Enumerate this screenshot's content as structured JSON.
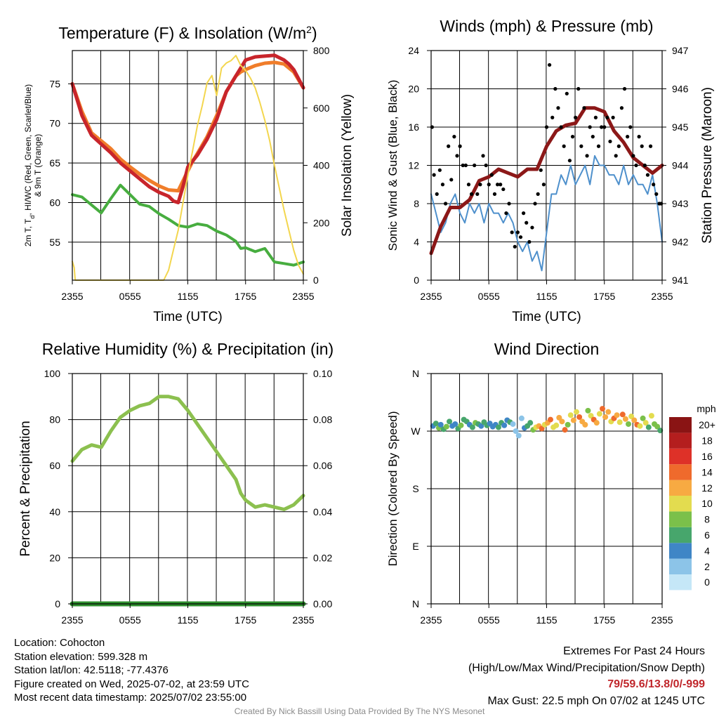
{
  "chart_data": [
    {
      "id": "temp",
      "type": "line",
      "title": "Temperature (F) & Insolation (W/m",
      "title_sup": "2",
      "title_close": ")",
      "xlabel": "Time (UTC)",
      "ylabel_left": [
        "2m T, T",
        "d",
        ", HI/WC (Red, Green, Scarlet/Blue)",
        "& 9m T (Orange)"
      ],
      "ylabel_right": "Solar Insolation (Yellow)",
      "x_ticks": [
        "2355",
        "0555",
        "1155",
        "1755",
        "2355"
      ],
      "ylim": [
        50.2,
        79.2
      ],
      "y_ticks": [
        55,
        60,
        65,
        70,
        75
      ],
      "y2lim": [
        0,
        920
      ],
      "y2_ticks": [
        0,
        200,
        400,
        600,
        800
      ],
      "grid": true,
      "series": [
        {
          "color": "#f07d2a",
          "width": 5,
          "x": [
            0,
            1,
            2,
            3,
            4,
            5,
            6,
            7,
            8,
            9,
            10,
            11,
            12,
            12.5,
            13,
            14,
            15,
            16,
            17,
            17.5,
            18,
            19,
            20,
            21,
            22,
            23,
            24
          ],
          "y": [
            75,
            71.5,
            68.8,
            67.8,
            66.8,
            65.5,
            64.5,
            63.6,
            62.8,
            62.1,
            61.6,
            61.5,
            64,
            65.2,
            66.2,
            68.3,
            71,
            74,
            76,
            76.5,
            76.8,
            77.3,
            77.6,
            77.7,
            77.5,
            76.5,
            74.5
          ]
        },
        {
          "color": "#c8252b",
          "width": 5,
          "x": [
            0,
            1,
            2,
            3,
            4,
            5,
            6,
            7,
            8,
            9,
            10,
            10.5,
            11,
            11.5,
            12,
            13,
            14,
            15,
            16,
            17,
            18,
            19,
            20,
            21,
            22,
            22.5,
            23,
            24
          ],
          "y": [
            75,
            71,
            68.5,
            67.4,
            66.3,
            65,
            64,
            63,
            62,
            61.3,
            60.8,
            60.2,
            60,
            62,
            64.5,
            66,
            68,
            70.5,
            74,
            76,
            78,
            78.4,
            78.5,
            78.6,
            78,
            77.5,
            76.8,
            74.5
          ]
        },
        {
          "color": "#47ad3f",
          "width": 4,
          "x": [
            0,
            1,
            2,
            3,
            4,
            5,
            6,
            7,
            8,
            9,
            10,
            11,
            12,
            13,
            14,
            15,
            16,
            17,
            17.5,
            18,
            19,
            20,
            21,
            22,
            23,
            24
          ],
          "y": [
            61,
            60.7,
            59.7,
            58.7,
            60.5,
            62.2,
            61,
            59.8,
            59.5,
            58.6,
            57.9,
            57.1,
            56.9,
            57.3,
            57.1,
            56.4,
            55.9,
            55.1,
            54.2,
            54.3,
            53.8,
            54.2,
            52.5,
            52.3,
            52.1,
            52.5
          ]
        },
        {
          "color": "#f3d64e",
          "width": 2,
          "axis": "right",
          "x": [
            0,
            0.2,
            0.3,
            9.5,
            10,
            10.5,
            11,
            11.5,
            12,
            12.5,
            13,
            13.5,
            14,
            14.5,
            15,
            15.5,
            16,
            16.5,
            17,
            17.5,
            18,
            18.5,
            19,
            19.5,
            20,
            20.5,
            21,
            21.5,
            22,
            22.5,
            23,
            23.5,
            24
          ],
          "y": [
            75,
            50,
            0,
            0,
            40,
            120,
            200,
            310,
            420,
            520,
            620,
            700,
            790,
            820,
            740,
            850,
            870,
            880,
            900,
            860,
            840,
            810,
            770,
            710,
            640,
            560,
            460,
            370,
            280,
            200,
            120,
            60,
            25
          ]
        }
      ]
    },
    {
      "id": "winds",
      "type": "line",
      "title": "Winds (mph) & Pressure (mb)",
      "xlabel": "Time (UTC)",
      "ylabel_left": "Sonic Wind & Gust (Blue, Black)",
      "ylabel_right": "Station Pressure (Maroon)",
      "x_ticks": [
        "2355",
        "0555",
        "1155",
        "1755",
        "2355"
      ],
      "ylim": [
        0,
        24
      ],
      "y_ticks": [
        0,
        4,
        8,
        12,
        16,
        20,
        24
      ],
      "y2lim": [
        941,
        947
      ],
      "y2_ticks": [
        941,
        942,
        943,
        944,
        945,
        946,
        947
      ],
      "grid": true,
      "series": [
        {
          "name": "",
          "color": "#4e90cc",
          "width": 2,
          "x": [
            0,
            0.5,
            1,
            1.5,
            2,
            2.5,
            3,
            3.5,
            4,
            4.5,
            5,
            5.5,
            6,
            6.5,
            7,
            7.5,
            8,
            8.5,
            9,
            9.5,
            10,
            10.5,
            11,
            11.5,
            12,
            12.5,
            13,
            13.5,
            14,
            14.5,
            15,
            15.5,
            16,
            16.5,
            17,
            17.5,
            18,
            18.5,
            19,
            19.5,
            20,
            20.5,
            21,
            21.5,
            22,
            22.5,
            23,
            23.5,
            24
          ],
          "y": [
            9,
            7,
            5,
            6,
            8,
            9,
            7,
            6,
            8,
            7,
            8,
            6,
            8,
            7,
            7,
            6,
            7,
            6,
            4,
            3,
            4,
            2,
            3,
            1,
            5,
            9,
            9,
            11,
            10,
            12,
            10,
            11,
            12,
            10,
            13,
            12,
            12,
            11,
            11,
            10,
            12,
            10,
            11,
            10,
            10,
            9,
            11,
            8,
            4
          ]
        },
        {
          "name": "",
          "color": "#8c1818",
          "width": 5,
          "axis": "right",
          "x": [
            0,
            1,
            2,
            3,
            4,
            5,
            6,
            7,
            8,
            9,
            10,
            11,
            12,
            13,
            14,
            15,
            16,
            17,
            18,
            19,
            20,
            21,
            22,
            23,
            24
          ],
          "y": [
            941.7,
            942.4,
            942.9,
            942.9,
            943.1,
            943.6,
            943.7,
            943.9,
            943.8,
            943.7,
            943.9,
            943.9,
            944.5,
            944.9,
            945.05,
            945.1,
            945.5,
            945.5,
            945.4,
            944.9,
            944.6,
            944.2,
            944.0,
            943.8,
            944.0
          ]
        }
      ],
      "gust_points": {
        "x": [
          0.1,
          0.3,
          0.6,
          0.9,
          1.2,
          1.5,
          1.8,
          2.1,
          2.4,
          2.7,
          3,
          3.3,
          3.6,
          3.9,
          4.2,
          4.5,
          4.8,
          5.1,
          5.4,
          5.7,
          6,
          6.3,
          6.6,
          6.9,
          7.2,
          7.5,
          7.8,
          8.1,
          8.4,
          8.7,
          9,
          9.3,
          9.6,
          9.9,
          10.2,
          10.5,
          10.8,
          11.1,
          11.4,
          11.7,
          12,
          12.3,
          12.6,
          12.9,
          13.2,
          13.5,
          13.8,
          14.1,
          14.4,
          14.7,
          15,
          15.3,
          15.6,
          15.9,
          16.2,
          16.5,
          16.8,
          17.1,
          17.4,
          17.7,
          18,
          18.3,
          18.6,
          18.9,
          19.2,
          19.5,
          19.8,
          20.1,
          20.4,
          20.7,
          21,
          21.3,
          21.6,
          21.9,
          22.2,
          22.5,
          22.8,
          23.1,
          23.4,
          23.7,
          23.9
        ],
        "y": [
          16,
          11,
          9,
          11.5,
          10,
          8,
          14,
          10.5,
          15,
          13,
          14,
          12,
          12,
          10,
          9,
          12,
          9,
          10,
          13,
          12,
          10,
          11,
          9,
          10,
          10,
          9.5,
          7,
          8,
          5,
          3.5,
          5,
          4.5,
          7,
          6,
          4,
          5.5,
          8,
          9,
          11.5,
          10,
          16,
          22.5,
          17,
          20,
          18,
          16,
          14,
          19.5,
          12.5,
          15,
          17,
          20,
          14,
          18,
          13,
          16,
          15,
          17,
          14,
          16,
          16,
          17,
          14.5,
          17,
          13,
          14,
          18,
          20,
          15,
          16,
          13,
          12,
          15,
          14,
          12,
          11,
          14,
          10,
          9,
          8,
          8
        ]
      }
    },
    {
      "id": "rh",
      "type": "line",
      "title": "Relative Humidity (%) & Precipitation (in)",
      "ylabel_left": "Percent & Precipitation",
      "x_ticks": [
        "2355",
        "0555",
        "1155",
        "1755",
        "2355"
      ],
      "ylim": [
        0,
        100
      ],
      "y_ticks": [
        0,
        20,
        40,
        60,
        80,
        100
      ],
      "y2lim": [
        0,
        0.1
      ],
      "y2_ticks": [
        "0.00",
        "0.02",
        "0.04",
        "0.06",
        "0.08",
        "0.10"
      ],
      "grid": true,
      "series": [
        {
          "color": "#8cc04f",
          "width": 5,
          "x": [
            0,
            1,
            2,
            3,
            4,
            5,
            6,
            7,
            8,
            9,
            10,
            11,
            12,
            13,
            14,
            15,
            16,
            17,
            17.5,
            18,
            19,
            20,
            21,
            22,
            23,
            24
          ],
          "y": [
            62,
            67,
            69,
            68,
            75,
            81,
            84,
            86,
            87,
            90,
            90,
            89,
            84,
            78,
            72,
            66,
            60,
            54,
            48,
            45,
            42,
            43,
            42,
            41,
            43,
            47
          ]
        },
        {
          "color": "#2f8f2f",
          "width": 7,
          "x": [
            0,
            24
          ],
          "y": [
            0,
            0
          ]
        }
      ]
    },
    {
      "id": "wdir",
      "type": "scatter",
      "title": "Wind Direction",
      "ylabel_left": "Direction (Colored By Speed)",
      "x_ticks": [
        "2355",
        "0555",
        "1155",
        "1755",
        "2355"
      ],
      "y_ticks": [
        "N",
        "E",
        "S",
        "W",
        "N"
      ],
      "ylim": [
        0,
        360
      ],
      "grid": true,
      "legend_title": "mph",
      "legend_labels": [
        "0",
        "2",
        "4",
        "6",
        "8",
        "10",
        "12",
        "14",
        "16",
        "18",
        "20+"
      ],
      "legend_colors": [
        "#c5e7f7",
        "#8cc4e8",
        "#3f86c6",
        "#47a66c",
        "#7bc04a",
        "#e3dc4f",
        "#f7aa42",
        "#ef6a2c",
        "#de3128",
        "#b41e1e",
        "#8a1414"
      ],
      "points": {
        "x": [
          0.2,
          0.5,
          0.8,
          1.0,
          1.3,
          1.6,
          1.9,
          2.2,
          2.5,
          2.8,
          3.1,
          3.4,
          3.7,
          4.0,
          4.3,
          4.6,
          4.9,
          5.2,
          5.5,
          5.8,
          6.1,
          6.4,
          6.7,
          7.0,
          7.3,
          7.6,
          7.9,
          8.2,
          8.5,
          8.8,
          9.1,
          9.4,
          9.7,
          10.0,
          10.3,
          10.6,
          10.9,
          11.2,
          11.5,
          11.8,
          12.1,
          12.4,
          12.7,
          13.0,
          13.3,
          13.6,
          13.9,
          14.2,
          14.5,
          14.8,
          15.1,
          15.4,
          15.7,
          16.0,
          16.3,
          16.6,
          16.9,
          17.2,
          17.5,
          17.8,
          18.1,
          18.4,
          18.7,
          19.0,
          19.3,
          19.6,
          19.9,
          20.2,
          20.5,
          20.8,
          21.1,
          21.4,
          21.7,
          22.0,
          22.3,
          22.6,
          22.9,
          23.2,
          23.5,
          23.8
        ],
        "y": [
          278,
          282,
          275,
          280,
          273,
          277,
          285,
          278,
          281,
          274,
          279,
          288,
          285,
          280,
          276,
          283,
          281,
          278,
          284,
          279,
          282,
          277,
          280,
          276,
          283,
          279,
          287,
          284,
          281,
          270,
          263,
          290,
          275,
          278,
          283,
          272,
          276,
          278,
          274,
          280,
          283,
          288,
          276,
          279,
          291,
          285,
          272,
          280,
          295,
          287,
          300,
          292,
          285,
          280,
          302,
          294,
          288,
          283,
          297,
          305,
          292,
          300,
          285,
          290,
          295,
          284,
          296,
          289,
          281,
          293,
          287,
          280,
          278,
          290,
          283,
          276,
          294,
          281,
          277,
          271
        ],
        "speed": [
          4,
          6,
          7,
          3,
          5,
          7,
          6,
          4,
          3,
          5,
          7,
          5,
          6,
          4,
          6,
          7,
          5,
          4,
          6,
          5,
          4,
          3,
          4,
          5,
          6,
          4,
          3,
          5,
          2,
          1,
          1,
          2,
          3,
          5,
          6,
          7,
          9,
          12,
          14,
          10,
          11,
          13,
          9,
          10,
          12,
          11,
          14,
          8,
          10,
          12,
          9,
          13,
          11,
          12,
          8,
          10,
          14,
          12,
          9,
          13,
          11,
          12,
          10,
          14,
          11,
          9,
          13,
          12,
          8,
          10,
          11,
          13,
          9,
          8,
          10,
          6,
          9,
          7,
          8,
          6
        ]
      }
    }
  ],
  "footer": {
    "location": "Location: Cohocton",
    "elevation": "Station elevation: 599.328 m",
    "latlon": "Station lat/lon: 42.5118; -77.4376",
    "created": "Figure created on Wed, 2025-07-02, at 23:59 UTC",
    "recent": "Most recent data timestamp: 2025/07/02 23:55:00",
    "extremes_title": "Extremes For Past 24 Hours",
    "extremes_subtitle": "(High/Low/Max Wind/Precipitation/Snow Depth)",
    "extremes_values": "79/59.6/13.8/0/-999",
    "max_gust": "Max Gust: 22.5 mph On 07/02 at 1245 UTC",
    "credit": "Created By Nick Bassill Using Data Provided By The NYS Mesonet"
  }
}
